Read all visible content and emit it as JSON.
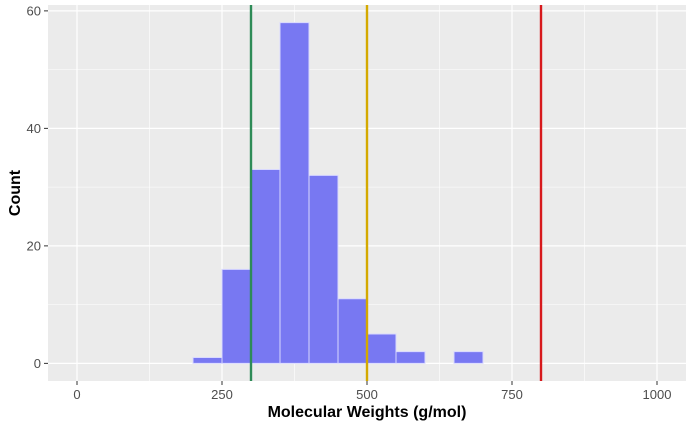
{
  "chart_data": {
    "type": "bar",
    "subtype": "histogram",
    "title": "",
    "xlabel": "Molecular Weights (g/mol)",
    "ylabel": "Count",
    "xlim": [
      -50,
      1050
    ],
    "ylim": [
      -3,
      61
    ],
    "x_ticks": [
      0,
      250,
      500,
      750,
      1000
    ],
    "y_ticks": [
      0,
      20,
      40,
      60
    ],
    "grid": true,
    "bin_width": 50,
    "bins": [
      {
        "start": 200,
        "end": 250,
        "count": 1
      },
      {
        "start": 250,
        "end": 300,
        "count": 16
      },
      {
        "start": 300,
        "end": 350,
        "count": 33
      },
      {
        "start": 350,
        "end": 400,
        "count": 58
      },
      {
        "start": 400,
        "end": 450,
        "count": 32
      },
      {
        "start": 450,
        "end": 500,
        "count": 11
      },
      {
        "start": 500,
        "end": 550,
        "count": 5
      },
      {
        "start": 550,
        "end": 600,
        "count": 2
      },
      {
        "start": 650,
        "end": 700,
        "count": 2
      }
    ],
    "vlines": [
      {
        "x": 300,
        "color": "#2e8b57"
      },
      {
        "x": 500,
        "color": "#d4a900"
      },
      {
        "x": 800,
        "color": "#d7191c"
      }
    ],
    "colors": {
      "bar_fill": "#7878f2",
      "bar_stroke": "#d9d9ff",
      "panel_background": "#ebebeb",
      "grid": "#ffffff"
    }
  }
}
